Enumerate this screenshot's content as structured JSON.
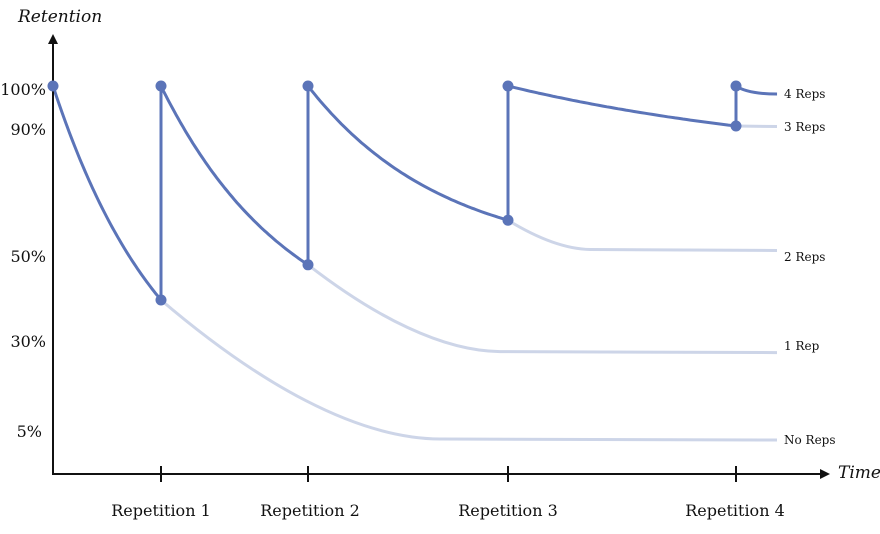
{
  "chart_data": {
    "type": "line",
    "ylabel": "Retention",
    "xlabel": "Time",
    "y_tick_labels": [
      {
        "label": "100%",
        "value": 100
      },
      {
        "label": "90%",
        "value": 90
      },
      {
        "label": "50%",
        "value": 50
      },
      {
        "label": "30%",
        "value": 30
      },
      {
        "label": "5%",
        "value": 5
      }
    ],
    "x_tick_labels": [
      {
        "label": "Repetition 1",
        "value": 1
      },
      {
        "label": "Repetition 2",
        "value": 2
      },
      {
        "label": "Repetition 3",
        "value": 3
      },
      {
        "label": "Repetition 4",
        "value": 4
      }
    ],
    "colors": {
      "active": "#5b74b8",
      "faded": "#cdd5e8",
      "axis": "#111111"
    },
    "series": [
      {
        "name": "No Reps",
        "start": [
          0,
          100
        ],
        "repeat_at": [
          1,
          40
        ],
        "asymptote": 5
      },
      {
        "name": "1 Rep",
        "start": [
          1,
          100
        ],
        "repeat_at": [
          2,
          48
        ],
        "asymptote": 28
      },
      {
        "name": "2 Reps",
        "start": [
          2,
          100
        ],
        "repeat_at": [
          3,
          61
        ],
        "asymptote": 52
      },
      {
        "name": "3 Reps",
        "start": [
          3,
          100
        ],
        "repeat_at": [
          4,
          90
        ],
        "asymptote": 90
      },
      {
        "name": "4 Reps",
        "start": [
          4,
          100
        ],
        "end": [
          4.18,
          98
        ]
      }
    ]
  }
}
